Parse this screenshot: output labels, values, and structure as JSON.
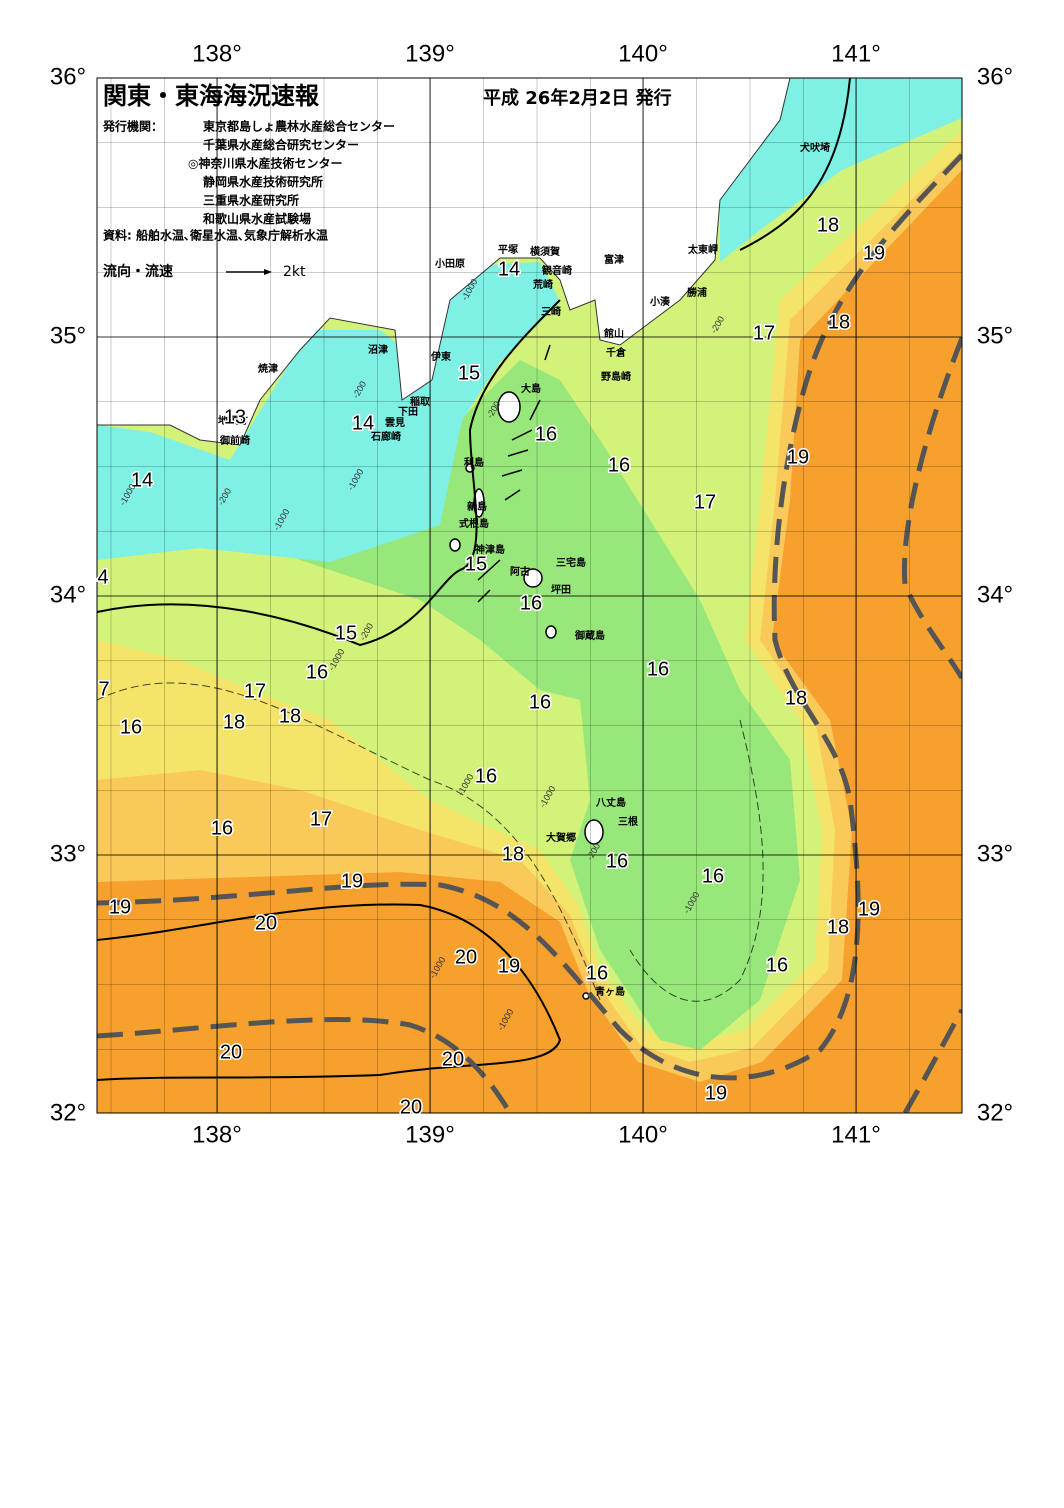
{
  "header": {
    "title": "関東・東海海況速報",
    "date": "平成 26年2月2日 発行"
  },
  "issuers": {
    "label": "発行機関：",
    "items": [
      "東京都島しょ農林水産総合センター",
      "千葉県水産総合研究センター",
      "◎神奈川県水産技術センター",
      "静岡県水産技術研究所",
      "三重県水産研究所",
      "和歌山県水産試験場"
    ]
  },
  "source": "資料: 船舶水温､衛星水温､気象庁解析水温",
  "legend": {
    "label": "流向・流速",
    "speed": "2kt"
  },
  "map": {
    "lon_ticks": [
      {
        "value": 138,
        "label": "138°"
      },
      {
        "value": 139,
        "label": "139°"
      },
      {
        "value": 140,
        "label": "140°"
      },
      {
        "value": 141,
        "label": "141°"
      }
    ],
    "lat_ticks": [
      {
        "value": 36,
        "label": "36°"
      },
      {
        "value": 35,
        "label": "35°"
      },
      {
        "value": 34,
        "label": "34°"
      },
      {
        "value": 33,
        "label": "33°"
      },
      {
        "value": 32,
        "label": "32°"
      }
    ],
    "places": [
      "犬吠埼",
      "太東岬",
      "勝浦",
      "小湊",
      "富津",
      "横須賀",
      "観音崎",
      "平塚",
      "小田原",
      "荒崎",
      "三崎",
      "館山",
      "千倉",
      "野島崎",
      "沼津",
      "伊東",
      "焼津",
      "稲取",
      "下田",
      "雲見",
      "石廊崎",
      "地頭方",
      "御前崎",
      "大島",
      "利島",
      "新島",
      "式根島",
      "神津島",
      "三宅島",
      "阿古",
      "坪田",
      "御蔵島",
      "八丈島",
      "三根",
      "大賀郷",
      "青ヶ島"
    ],
    "contour_labels": [
      "14",
      "15",
      "16",
      "16",
      "17",
      "14",
      "13",
      "14",
      "4",
      "15",
      "16",
      "15",
      "16",
      "17",
      "16",
      "16",
      "18",
      "7",
      "16",
      "18",
      "18",
      "16",
      "16",
      "17",
      "18",
      "16",
      "16",
      "19",
      "19",
      "20",
      "20",
      "19",
      "16",
      "16",
      "18",
      "19",
      "20",
      "20",
      "20",
      "19",
      "18",
      "19",
      "18",
      "17",
      "19"
    ],
    "depth_labels": [
      "-1000",
      "-200",
      "-1000",
      "-200",
      "-1000",
      "-1000",
      "-200",
      "-1000",
      "-1000",
      "-1000",
      "-1000",
      "-200",
      "-1000",
      "-1000",
      "-200",
      "-200"
    ]
  }
}
